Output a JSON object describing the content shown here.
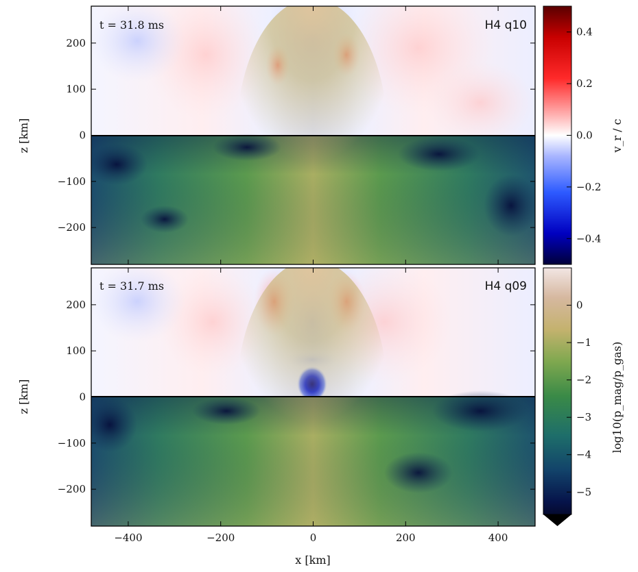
{
  "figure": {
    "xlabel": "x [km]",
    "ylabel": "z [km]",
    "colorbar_top_label": "v_r / c",
    "colorbar_bottom_label": "log10(p_mag/p_gas)"
  },
  "colors": {
    "velocity_map": [
      "#00003a",
      "#0000c0",
      "#2e5bff",
      "#a9b6ff",
      "#ffffff",
      "#ffb0b0",
      "#ff2a2a",
      "#c80000",
      "#5a0000"
    ],
    "ratio_map": [
      "#000000",
      "#06134a",
      "#12436a",
      "#1e6e6a",
      "#3a8a47",
      "#7fa84f",
      "#c4b26e",
      "#d6b8a0",
      "#f2e6e4"
    ]
  },
  "chart_data": [
    {
      "type": "heatmap",
      "panel": "top",
      "time_label": "t = 31.8 ms",
      "run_label": "H4 q10",
      "xlabel": "x [km]",
      "ylabel": "z [km]",
      "xlim": [
        -480,
        480
      ],
      "ylim": [
        -280,
        280
      ],
      "xticks": [
        -400,
        -200,
        0,
        200,
        400
      ],
      "xtick_labels": [
        "−400",
        "−200",
        "0",
        "200",
        "400"
      ],
      "yticks": [
        200,
        100,
        0,
        -100,
        -200
      ],
      "ytick_labels": [
        "200",
        "100",
        "0",
        "−100",
        "−200"
      ],
      "upper_half": {
        "quantity": "v_r / c",
        "range": [
          -0.5,
          0.5
        ]
      },
      "lower_half": {
        "quantity": "log10(p_mag/p_gas)",
        "range": [
          -5.6,
          1
        ]
      }
    },
    {
      "type": "heatmap",
      "panel": "bottom",
      "time_label": "t = 31.7 ms",
      "run_label": "H4 q09",
      "xlabel": "x [km]",
      "ylabel": "z [km]",
      "xlim": [
        -480,
        480
      ],
      "ylim": [
        -280,
        280
      ],
      "xticks": [
        -400,
        -200,
        0,
        200,
        400
      ],
      "xtick_labels": [
        "−400",
        "−200",
        "0",
        "200",
        "400"
      ],
      "yticks": [
        200,
        100,
        0,
        -100,
        -200
      ],
      "ytick_labels": [
        "200",
        "100",
        "0",
        "−100",
        "−200"
      ],
      "upper_half": {
        "quantity": "v_r / c",
        "range": [
          -0.5,
          0.5
        ]
      },
      "lower_half": {
        "quantity": "log10(p_mag/p_gas)",
        "range": [
          -5.6,
          1
        ]
      }
    }
  ],
  "colorbars": [
    {
      "label": "v_r / c",
      "range": [
        -0.5,
        0.5
      ],
      "ticks": [
        0.4,
        0.2,
        0.0,
        -0.2,
        -0.4
      ],
      "tick_labels": [
        "0.4",
        "0.2",
        "0.0",
        "−0.2",
        "−0.4"
      ]
    },
    {
      "label": "log10(p_mag/p_gas)",
      "range": [
        -5.6,
        1
      ],
      "extend": "min",
      "ticks": [
        0,
        -1,
        -2,
        -3,
        -4,
        -5
      ],
      "tick_labels": [
        "0",
        "−1",
        "−2",
        "−3",
        "−4",
        "−5"
      ]
    }
  ]
}
